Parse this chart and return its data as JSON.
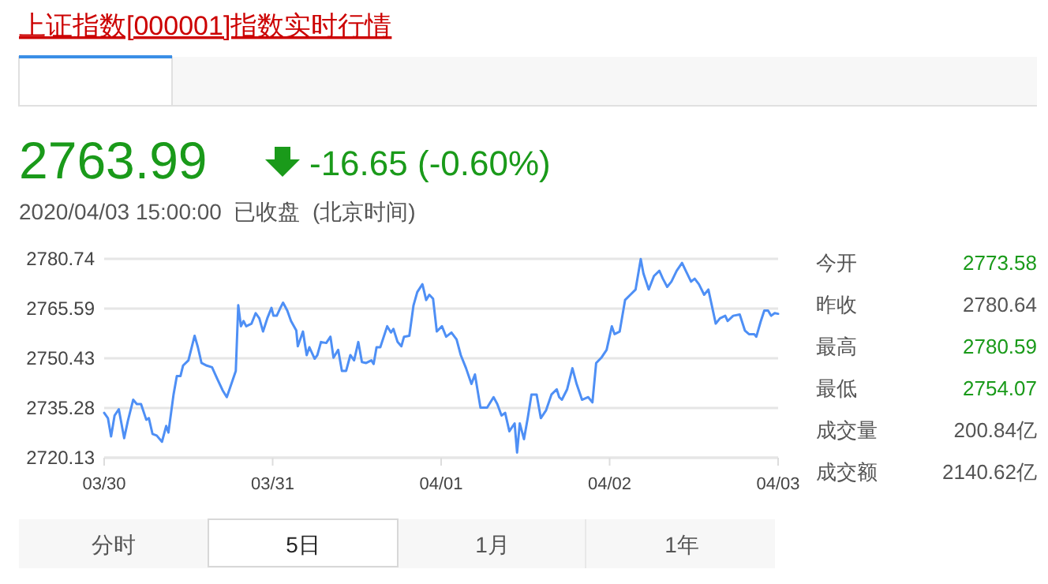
{
  "chart_data": {
    "type": "line",
    "title": "上证指数[000001]指数实时行情",
    "annotations": [
      "2763.99",
      "-16.65 (-0.60%)",
      "2020/04/03 15:00:00  已收盘  (北京时间)",
      "今开",
      "2773.58",
      "昨收",
      "2780.64",
      "最高",
      "2780.59",
      "最低",
      "2754.07",
      "成交量",
      "200.84亿",
      "成交额",
      "2140.62亿",
      "分时",
      "5日",
      "1月",
      "1年"
    ],
    "xlim": [
      "2020-03-30",
      "2020-04-03"
    ],
    "xticks": [
      {
        "value": "2020-03-30",
        "label": "03/30"
      },
      {
        "value": "2020-03-31",
        "label": "03/31"
      },
      {
        "value": "2020-04-01",
        "label": "04/01"
      },
      {
        "value": "2020-04-02",
        "label": "04/02"
      },
      {
        "value": "2020-04-03",
        "label": "04/03"
      }
    ],
    "ylim": [
      2720.13,
      2780.74
    ],
    "yticks": [
      2720.13,
      2735.28,
      2750.43,
      2765.59,
      2780.74
    ],
    "grid": "y",
    "series": [
      {
        "color": "#4e8ff5",
        "x": [
          "2020-03-30T00:00",
          "2020-03-30T00:32",
          "2020-03-30T00:59",
          "2020-03-30T01:29",
          "2020-03-30T02:05",
          "2020-03-30T02:51",
          "2020-03-30T03:23",
          "2020-03-30T04:08",
          "2020-03-30T04:39",
          "2020-03-30T05:15",
          "2020-03-30T06:00",
          "2020-03-30T06:22",
          "2020-03-30T06:53",
          "2020-03-30T07:29",
          "2020-03-30T08:14",
          "2020-03-30T08:50",
          "2020-03-30T09:09",
          "2020-03-30T09:53",
          "2020-03-30T10:21",
          "2020-03-30T10:52",
          "2020-03-30T11:14",
          "2020-03-30T12:00",
          "2020-03-30T12:53",
          "2020-03-30T13:21",
          "2020-03-30T13:52",
          "2020-03-30T14:37",
          "2020-03-30T15:22",
          "2020-03-30T16:06",
          "2020-03-30T16:52",
          "2020-03-30T17:28",
          "2020-03-30T17:59",
          "2020-03-30T18:45",
          "2020-03-30T19:06",
          "2020-03-30T19:29",
          "2020-03-30T19:51",
          "2020-03-30T20:14",
          "2020-03-30T20:59",
          "2020-03-30T21:35",
          "2020-03-30T22:06",
          "2020-03-30T22:38",
          "2020-03-30T23:14",
          "2020-03-30T23:50",
          "2020-03-31T00:07",
          "2020-03-31T00:35",
          "2020-03-31T01:06",
          "2020-03-31T01:29",
          "2020-03-31T02:05",
          "2020-03-31T02:37",
          "2020-03-31T03:22",
          "2020-03-31T03:35",
          "2020-03-31T04:19",
          "2020-03-31T04:51",
          "2020-03-31T05:14",
          "2020-03-31T05:59",
          "2020-03-31T06:22",
          "2020-03-31T06:53",
          "2020-03-31T07:38",
          "2020-03-31T08:14",
          "2020-03-31T08:40",
          "2020-03-31T09:20",
          "2020-03-31T09:52",
          "2020-03-31T10:28",
          "2020-03-31T11:04",
          "2020-03-31T11:36",
          "2020-03-31T12:12",
          "2020-03-31T12:43",
          "2020-03-31T13:19",
          "2020-03-31T14:04",
          "2020-03-31T14:23",
          "2020-03-31T14:48",
          "2020-03-31T15:20",
          "2020-03-31T16:19",
          "2020-03-31T16:51",
          "2020-03-31T17:12",
          "2020-03-31T17:48",
          "2020-03-31T18:20",
          "2020-03-31T18:43",
          "2020-03-31T19:28",
          "2020-03-31T20:04",
          "2020-03-31T20:36",
          "2020-03-31T21:20",
          "2020-03-31T21:52",
          "2020-03-31T22:19",
          "2020-03-31T22:51",
          "2020-03-31T23:23",
          "2020-04-01T00:07",
          "2020-04-01T00:43",
          "2020-04-01T01:28",
          "2020-04-01T02:12",
          "2020-04-01T02:48",
          "2020-04-01T03:33",
          "2020-04-01T04:19",
          "2020-04-01T04:49",
          "2020-04-01T05:36",
          "2020-04-01T06:33",
          "2020-04-01T07:28",
          "2020-04-01T08:00",
          "2020-04-01T08:36",
          "2020-04-01T09:07",
          "2020-04-01T09:43",
          "2020-04-01T10:28",
          "2020-04-01T10:49",
          "2020-04-01T11:12",
          "2020-04-01T11:48",
          "2020-04-01T12:20",
          "2020-04-01T12:52",
          "2020-04-01T13:36",
          "2020-04-01T14:12",
          "2020-04-01T14:57",
          "2020-04-01T15:43",
          "2020-04-01T16:28",
          "2020-04-01T16:49",
          "2020-04-01T17:12",
          "2020-04-01T17:57",
          "2020-04-01T18:42",
          "2020-04-01T19:18",
          "2020-04-01T20:04",
          "2020-04-01T20:57",
          "2020-04-01T21:33",
          "2020-04-01T22:05",
          "2020-04-01T22:49",
          "2020-04-01T23:34",
          "2020-04-02T00:19",
          "2020-04-02T00:42",
          "2020-04-02T01:26",
          "2020-04-02T02:12",
          "2020-04-02T02:57",
          "2020-04-02T03:42",
          "2020-04-02T04:26",
          "2020-04-02T04:49",
          "2020-04-02T05:34",
          "2020-04-02T06:19",
          "2020-04-02T07:05",
          "2020-04-02T07:35",
          "2020-04-02T08:12",
          "2020-04-02T08:48",
          "2020-04-02T09:33",
          "2020-04-02T10:19",
          "2020-04-02T10:51",
          "2020-04-02T11:36",
          "2020-04-02T12:07",
          "2020-04-02T12:43",
          "2020-04-02T13:28",
          "2020-04-02T14:04",
          "2020-04-02T15:07",
          "2020-04-02T15:43",
          "2020-04-02T16:28",
          "2020-04-02T16:49",
          "2020-04-02T17:36",
          "2020-04-02T18:32",
          "2020-04-02T19:16",
          "2020-04-02T19:51",
          "2020-04-02T20:36",
          "2020-04-02T20:54",
          "2020-04-02T21:30",
          "2020-04-02T22:02",
          "2020-04-02T22:34",
          "2020-04-02T23:00",
          "2020-04-02T23:31",
          "2020-04-03T00:00"
        ],
        "values": [
          2733.8,
          2732.2,
          2726.6,
          2733.0,
          2734.9,
          2726.1,
          2731.4,
          2737.8,
          2736.5,
          2736.5,
          2731.7,
          2732.2,
          2727.4,
          2726.9,
          2725.0,
          2729.8,
          2727.8,
          2739.4,
          2745.0,
          2745.0,
          2748.2,
          2749.8,
          2757.3,
          2753.8,
          2749.0,
          2748.2,
          2747.7,
          2744.2,
          2740.7,
          2738.6,
          2741.8,
          2746.6,
          2766.6,
          2760.2,
          2761.8,
          2760.2,
          2761.0,
          2764.2,
          2762.6,
          2758.6,
          2762.6,
          2765.8,
          2763.4,
          2763.4,
          2765.8,
          2767.4,
          2765.0,
          2761.8,
          2758.9,
          2754.1,
          2758.6,
          2751.4,
          2753.8,
          2750.3,
          2751.4,
          2755.4,
          2755.1,
          2757.0,
          2750.6,
          2753.0,
          2746.6,
          2746.6,
          2751.4,
          2749.8,
          2755.4,
          2749.3,
          2749.0,
          2749.8,
          2748.7,
          2753.8,
          2753.8,
          2760.2,
          2758.3,
          2759.4,
          2755.4,
          2754.1,
          2757.0,
          2757.3,
          2766.6,
          2770.6,
          2773.0,
          2768.2,
          2769.8,
          2768.6,
          2758.6,
          2760.2,
          2757.0,
          2758.3,
          2756.2,
          2751.4,
          2747.4,
          2742.6,
          2745.5,
          2735.4,
          2735.4,
          2738.6,
          2736.5,
          2733.0,
          2733.8,
          2728.2,
          2730.6,
          2721.7,
          2730.6,
          2725.8,
          2732.2,
          2739.4,
          2739.4,
          2732.2,
          2734.6,
          2739.4,
          2741.0,
          2738.6,
          2737.8,
          2741.0,
          2747.4,
          2742.6,
          2737.8,
          2738.6,
          2737.0,
          2749.0,
          2750.6,
          2753.0,
          2760.2,
          2757.8,
          2758.6,
          2768.2,
          2769.8,
          2771.4,
          2780.7,
          2776.3,
          2771.4,
          2775.5,
          2777.1,
          2774.7,
          2772.2,
          2773.8,
          2777.1,
          2779.5,
          2777.1,
          2773.8,
          2774.7,
          2773.0,
          2769.8,
          2771.4,
          2761.0,
          2762.6,
          2763.4,
          2761.8,
          2763.4,
          2763.8,
          2758.9,
          2757.8,
          2757.8,
          2757.0,
          2761.5,
          2765.0,
          2765.0,
          2763.4,
          2764.2,
          2764.0
        ]
      }
    ]
  }
}
